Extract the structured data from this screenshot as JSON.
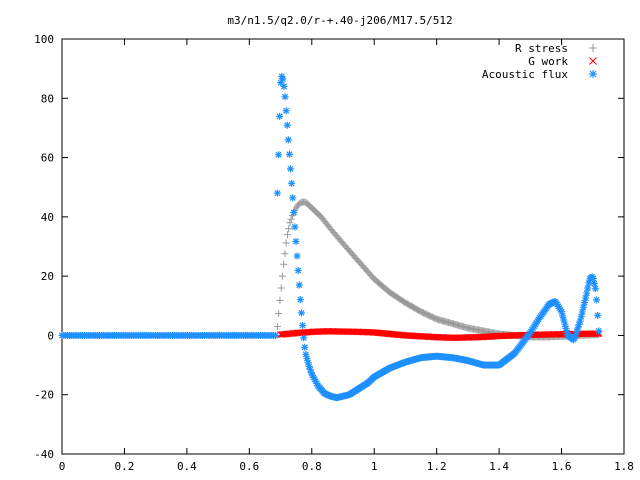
{
  "chart_data": {
    "type": "scatter",
    "title": "m3/n1.5/q2.0/r-+.40-j206/M17.5/512",
    "xlabel": "",
    "ylabel": "",
    "xlim": [
      0,
      1.8
    ],
    "ylim": [
      -40,
      100
    ],
    "x_ticks": [
      "0",
      "0.2",
      "0.4",
      "0.6",
      "0.8",
      "1",
      "1.2",
      "1.4",
      "1.6",
      "1.8"
    ],
    "y_ticks": [
      "100",
      "80",
      "60",
      "40",
      "20",
      "0",
      "-20",
      "-40"
    ],
    "grid": false,
    "legend_position": "top-right",
    "series": [
      {
        "name": "R stress",
        "marker": "+",
        "color": "#999999",
        "x": [
          0.69,
          0.7,
          0.71,
          0.72,
          0.73,
          0.74,
          0.75,
          0.76,
          0.77,
          0.78,
          0.8,
          0.83,
          0.86,
          0.9,
          0.95,
          1.0,
          1.05,
          1.1,
          1.15,
          1.2,
          1.25,
          1.3,
          1.35,
          1.4,
          1.45,
          1.5,
          1.55,
          1.6,
          1.65,
          1.7,
          1.72
        ],
        "y": [
          3,
          14,
          24,
          33,
          38,
          41,
          43,
          44.5,
          45,
          45,
          43,
          40,
          36,
          31,
          25,
          19,
          14.5,
          11,
          8,
          5.5,
          4,
          2.5,
          1.5,
          0.5,
          0,
          -0.5,
          -0.5,
          -0.3,
          0,
          0.2,
          0.3
        ]
      },
      {
        "name": "G work",
        "marker": "x",
        "color": "#ff0000",
        "x": [
          0.7,
          0.75,
          0.8,
          0.85,
          0.9,
          0.95,
          1.0,
          1.05,
          1.1,
          1.15,
          1.2,
          1.25,
          1.3,
          1.35,
          1.4,
          1.45,
          1.5,
          1.55,
          1.6,
          1.65,
          1.7,
          1.72
        ],
        "y": [
          0.3,
          0.8,
          1.2,
          1.4,
          1.3,
          1.2,
          1.0,
          0.5,
          0,
          -0.3,
          -0.6,
          -0.8,
          -0.7,
          -0.5,
          -0.2,
          0,
          0.2,
          0.3,
          0.4,
          0.5,
          0.6,
          0.6
        ]
      },
      {
        "name": "Acoustic flux",
        "marker": "*",
        "color": "#1e90ff",
        "x": [
          0.69,
          0.7,
          0.705,
          0.71,
          0.715,
          0.72,
          0.725,
          0.73,
          0.735,
          0.74,
          0.745,
          0.75,
          0.755,
          0.76,
          0.765,
          0.77,
          0.775,
          0.78,
          0.79,
          0.8,
          0.82,
          0.84,
          0.86,
          0.88,
          0.9,
          0.92,
          0.95,
          0.98,
          1.0,
          1.05,
          1.1,
          1.15,
          1.2,
          1.25,
          1.3,
          1.35,
          1.4,
          1.45,
          1.5,
          1.53,
          1.56,
          1.58,
          1.6,
          1.62,
          1.64,
          1.66,
          1.68,
          1.69,
          1.7,
          1.71,
          1.72
        ],
        "y": [
          48,
          85,
          88,
          85,
          80,
          73,
          66,
          59,
          52,
          45,
          38,
          31,
          24,
          17,
          10,
          4,
          -2,
          -6,
          -10,
          -13,
          -17,
          -19.5,
          -20.5,
          -21,
          -20.5,
          -20,
          -18,
          -16,
          -14,
          -11,
          -9,
          -7.5,
          -7,
          -7.5,
          -8.5,
          -10,
          -10,
          -6,
          1,
          6,
          10.5,
          11.5,
          8,
          0,
          -1.5,
          5,
          14,
          19,
          20,
          15,
          0
        ]
      }
    ]
  }
}
